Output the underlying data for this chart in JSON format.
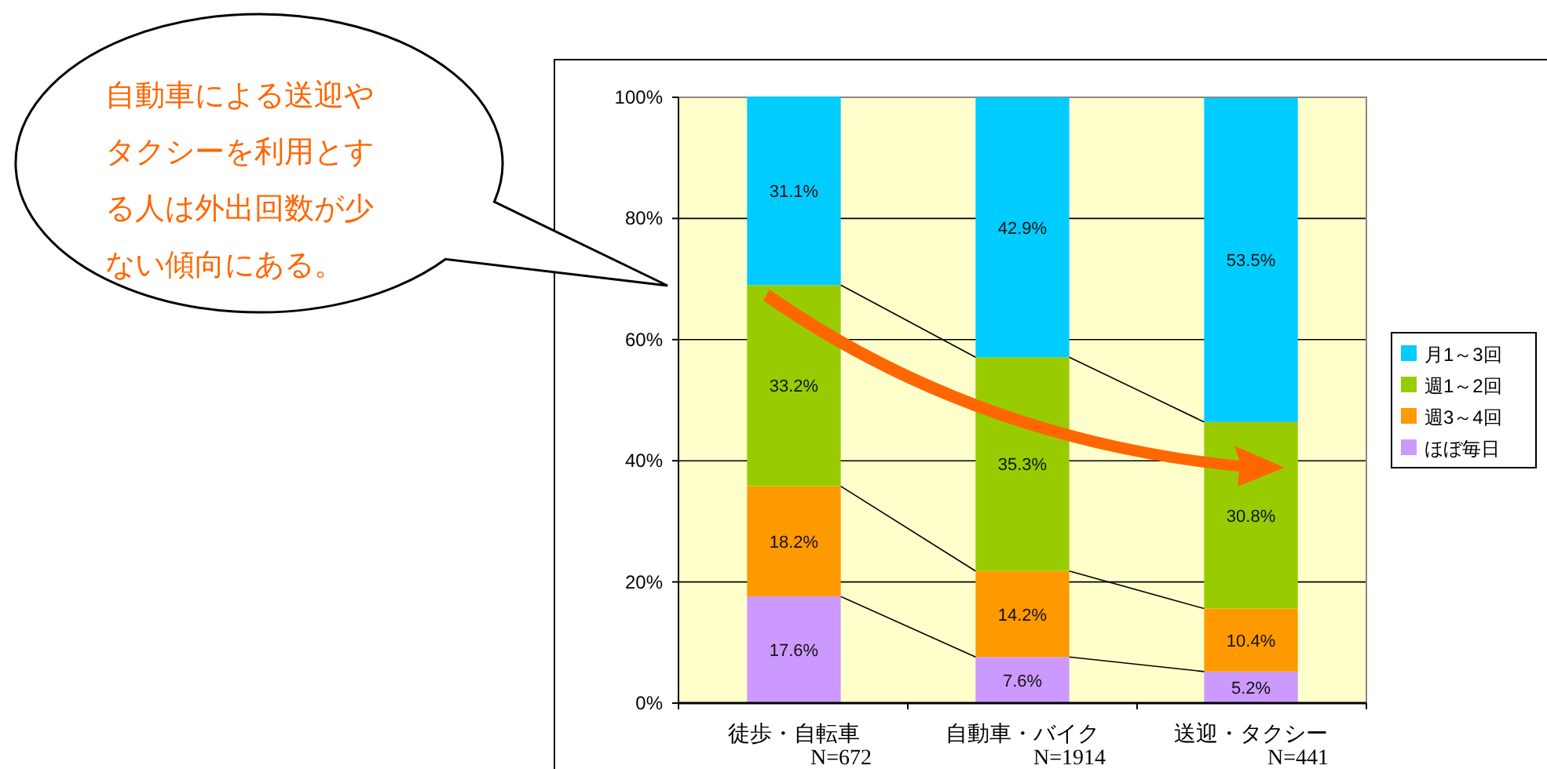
{
  "chart_data": {
    "type": "bar",
    "stacked": true,
    "categories": [
      "徒歩・自転車",
      "自動車・バイク",
      "送迎・タクシー"
    ],
    "series": [
      {
        "name": "ほぼ毎日",
        "color": "#cc99ff",
        "values": [
          17.6,
          7.6,
          5.2
        ],
        "value_labels": [
          "17.6%",
          "7.6%",
          "5.2%"
        ]
      },
      {
        "name": "週3～4回",
        "color": "#ff9900",
        "values": [
          18.2,
          14.2,
          10.4
        ],
        "value_labels": [
          "18.2%",
          "14.2%",
          "10.4%"
        ]
      },
      {
        "name": "週1～2回",
        "color": "#99cc00",
        "values": [
          33.2,
          35.3,
          30.8
        ],
        "value_labels": [
          "33.2%",
          "35.3%",
          "30.8%"
        ]
      },
      {
        "name": "月1～3回",
        "color": "#00ccff",
        "values": [
          31.1,
          42.9,
          53.5
        ],
        "value_labels": [
          "31.1%",
          "42.9%",
          "53.5%"
        ]
      }
    ],
    "ylim": [
      0,
      100
    ],
    "yticks": [
      {
        "value": 0,
        "label": "0%"
      },
      {
        "value": 20,
        "label": "20%"
      },
      {
        "value": 40,
        "label": "40%"
      },
      {
        "value": 60,
        "label": "60%"
      },
      {
        "value": 80,
        "label": "80%"
      },
      {
        "value": 100,
        "label": "100%"
      }
    ],
    "grid": "y",
    "legend": "right",
    "annotations": [
      "自動車による送迎やタクシーを利用とする人は外出回数が少ない傾向にある。",
      "N=672",
      "N=1914",
      "N=441"
    ]
  }
}
